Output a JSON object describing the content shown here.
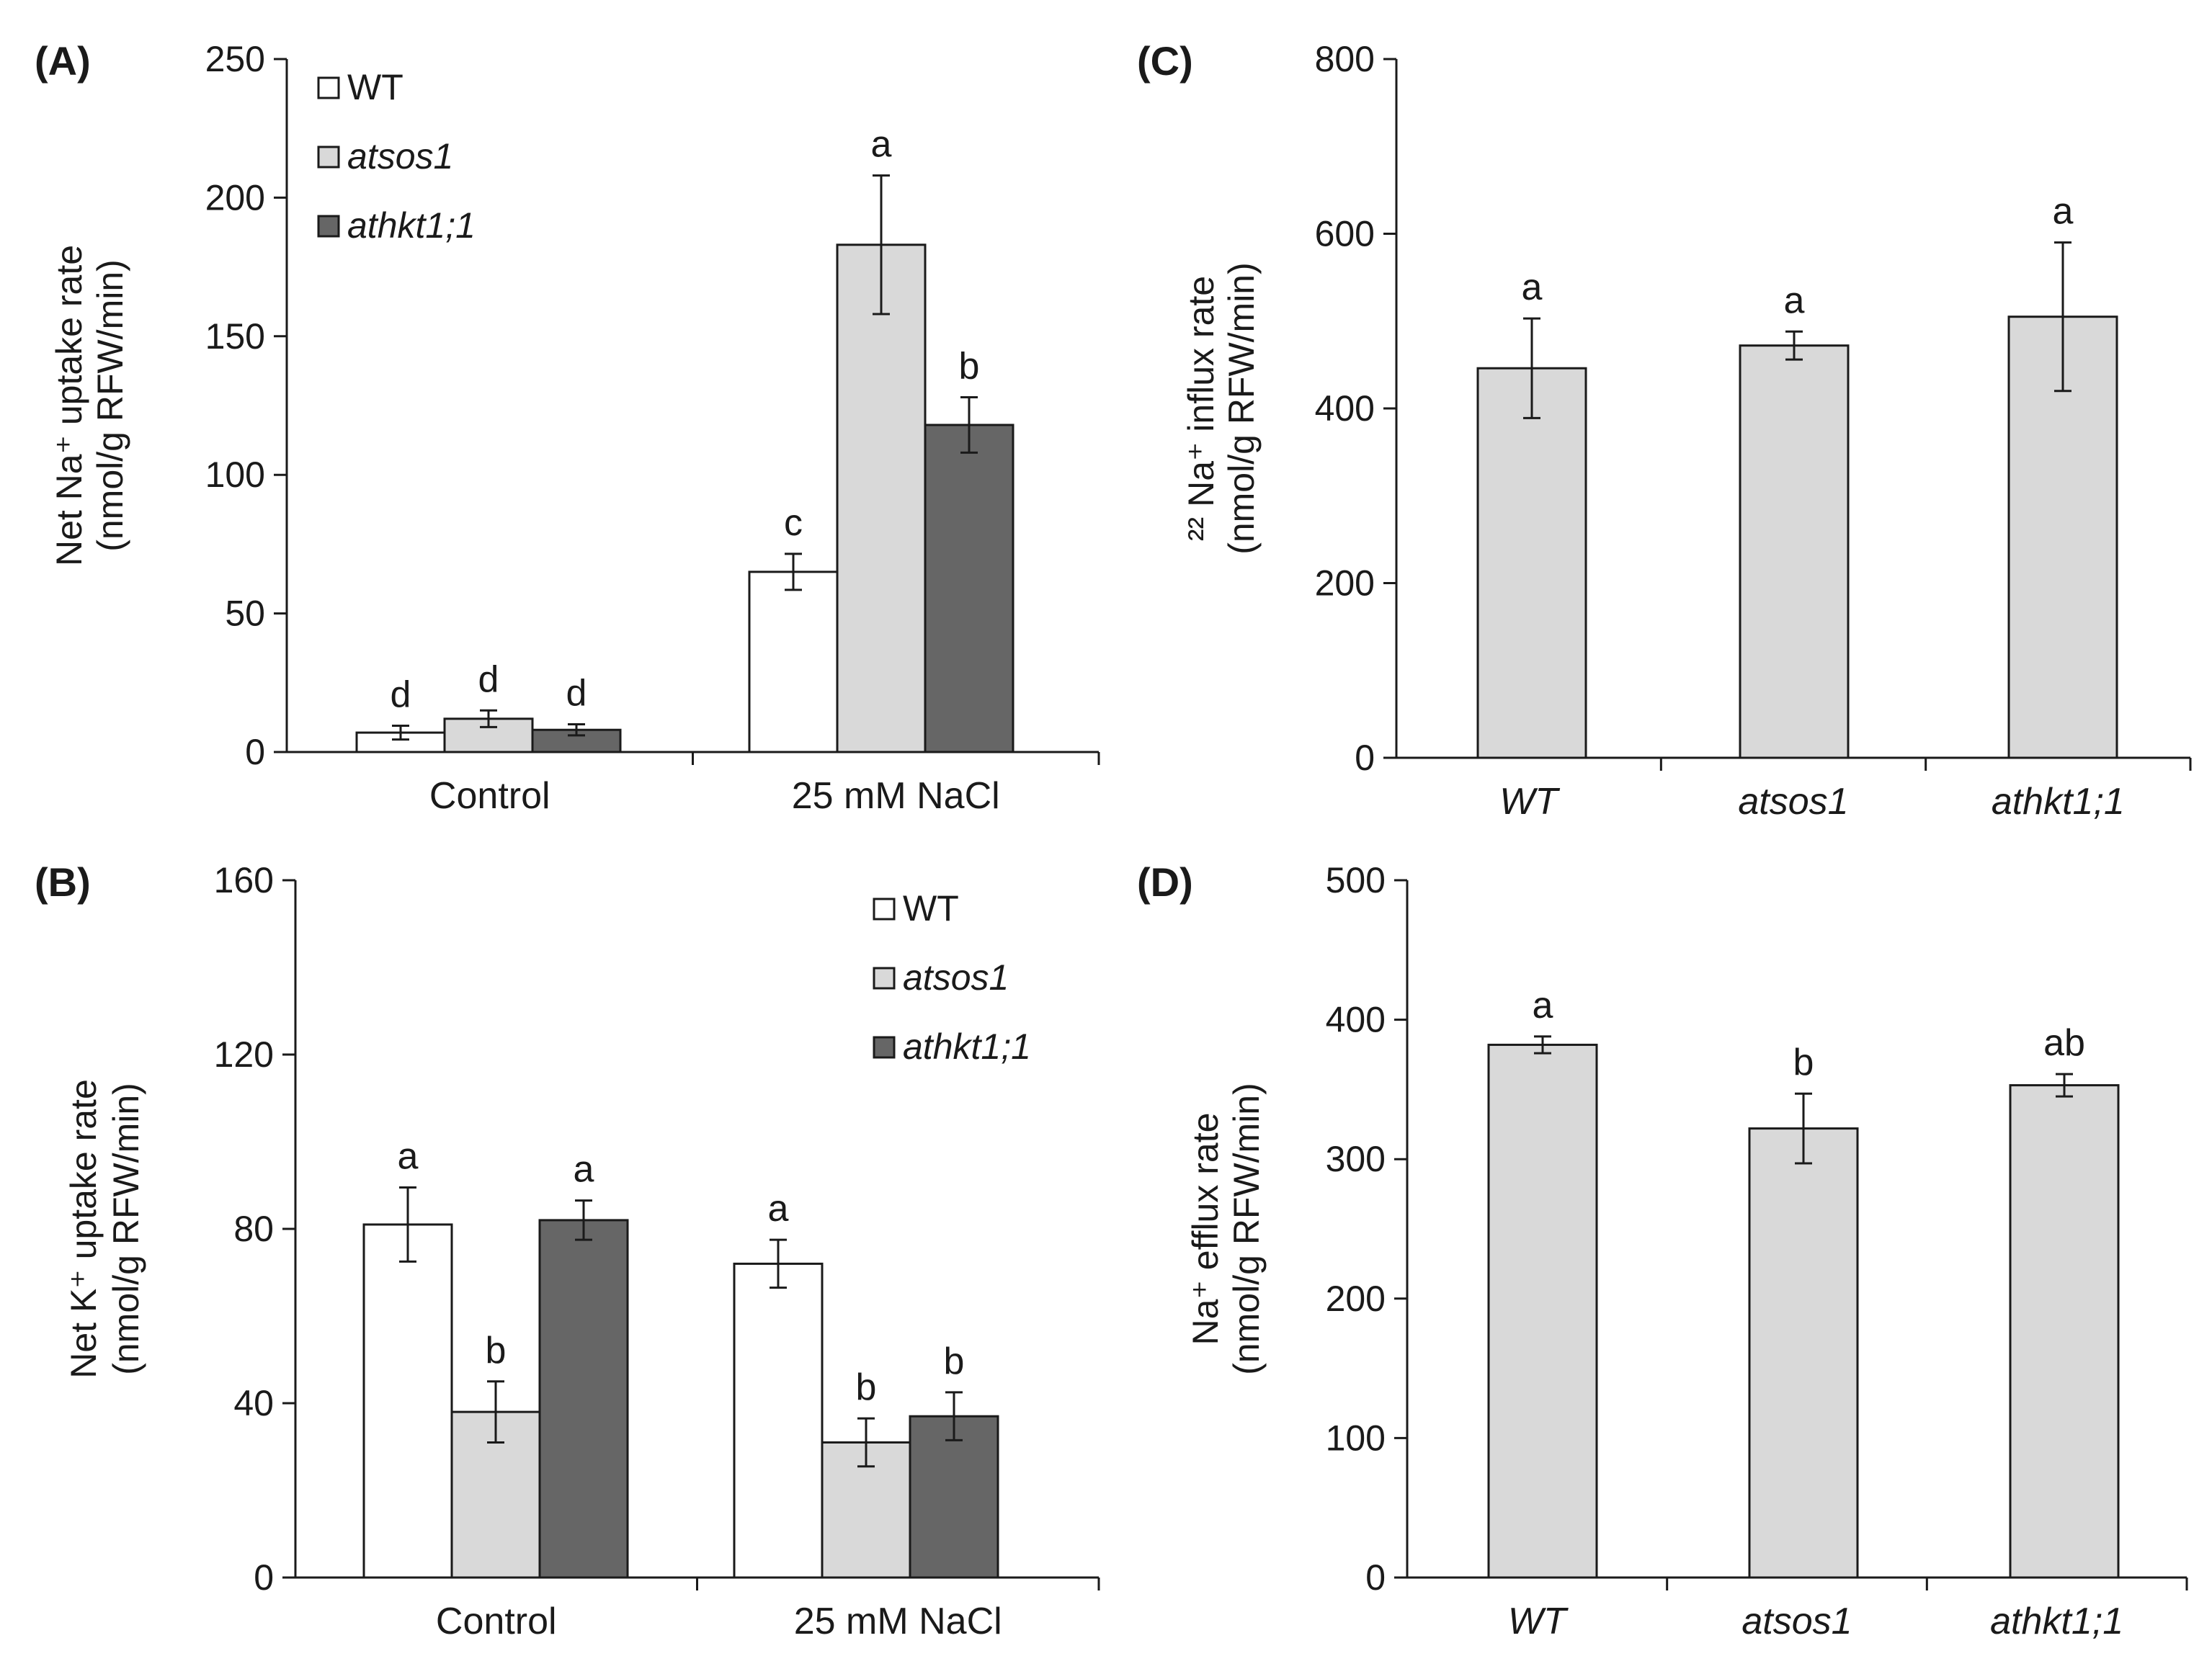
{
  "colors": {
    "wt": "#ffffff",
    "atsos1": "#d9d9d9",
    "athkt1": "#666666",
    "single": "#d9d9d9",
    "stroke": "#1a1a1a"
  },
  "chart_data": [
    {
      "id": "A",
      "panel_label": "(A)",
      "type": "bar",
      "ylabel_line1": "Net Na⁺ uptake rate",
      "ylabel_line2": "(nmol/g RFW/min)",
      "ylim": [
        0,
        250
      ],
      "yticks": [
        0,
        50,
        100,
        150,
        200,
        250
      ],
      "legend_position": "top-left",
      "categories": [
        "Control",
        "25 mM NaCl"
      ],
      "series": [
        {
          "name": "WT",
          "color_key": "wt",
          "italic": false,
          "values": [
            7,
            65
          ],
          "errors": [
            2.5,
            6.5
          ],
          "sig": [
            "d",
            "c"
          ]
        },
        {
          "name": "atsos1",
          "color_key": "atsos1",
          "italic": true,
          "values": [
            12,
            183
          ],
          "errors": [
            3,
            25
          ],
          "sig": [
            "d",
            "a"
          ]
        },
        {
          "name": "athkt1;1",
          "color_key": "athkt1",
          "italic": true,
          "values": [
            8,
            118
          ],
          "errors": [
            2,
            10
          ],
          "sig": [
            "d",
            "b"
          ]
        }
      ]
    },
    {
      "id": "B",
      "panel_label": "(B)",
      "type": "bar",
      "ylabel_line1": "Net K⁺ uptake rate",
      "ylabel_line2": "(nmol/g RFW/min)",
      "ylim": [
        0,
        160
      ],
      "yticks": [
        0,
        40,
        80,
        120,
        160
      ],
      "legend_position": "top-right",
      "categories": [
        "Control",
        "25 mM NaCl"
      ],
      "series": [
        {
          "name": "WT",
          "color_key": "wt",
          "italic": false,
          "values": [
            81,
            72
          ],
          "errors": [
            8.5,
            5.5
          ],
          "sig": [
            "a",
            "a"
          ]
        },
        {
          "name": "atsos1",
          "color_key": "atsos1",
          "italic": true,
          "values": [
            38,
            31
          ],
          "errors": [
            7,
            5.5
          ],
          "sig": [
            "b",
            "b"
          ]
        },
        {
          "name": "athkt1;1",
          "color_key": "athkt1",
          "italic": true,
          "values": [
            82,
            37
          ],
          "errors": [
            4.5,
            5.5
          ],
          "sig": [
            "a",
            "b"
          ]
        }
      ]
    },
    {
      "id": "C",
      "panel_label": "(C)",
      "type": "bar",
      "ylabel_line1": "²² Na⁺ influx rate",
      "ylabel_line2": "(nmol/g RFW/min)",
      "ylim": [
        0,
        800
      ],
      "yticks": [
        0,
        200,
        400,
        600,
        800
      ],
      "categories": [
        "WT",
        "atsos1",
        "athkt1;1"
      ],
      "categories_italic": true,
      "values": [
        446,
        472,
        505
      ],
      "errors": [
        57,
        16,
        85
      ],
      "sig": [
        "a",
        "a",
        "a"
      ],
      "color_key": "single"
    },
    {
      "id": "D",
      "panel_label": "(D)",
      "type": "bar",
      "ylabel_line1": "Na⁺ efflux rate",
      "ylabel_line2": "(nmol/g RFW/min)",
      "ylim": [
        0,
        500
      ],
      "yticks": [
        0,
        100,
        200,
        300,
        400,
        500
      ],
      "categories": [
        "WT",
        "atsos1",
        "athkt1;1"
      ],
      "categories_italic": true,
      "values": [
        382,
        322,
        353
      ],
      "errors": [
        6,
        25,
        8
      ],
      "sig": [
        "a",
        "b",
        "ab"
      ],
      "color_key": "single"
    }
  ]
}
